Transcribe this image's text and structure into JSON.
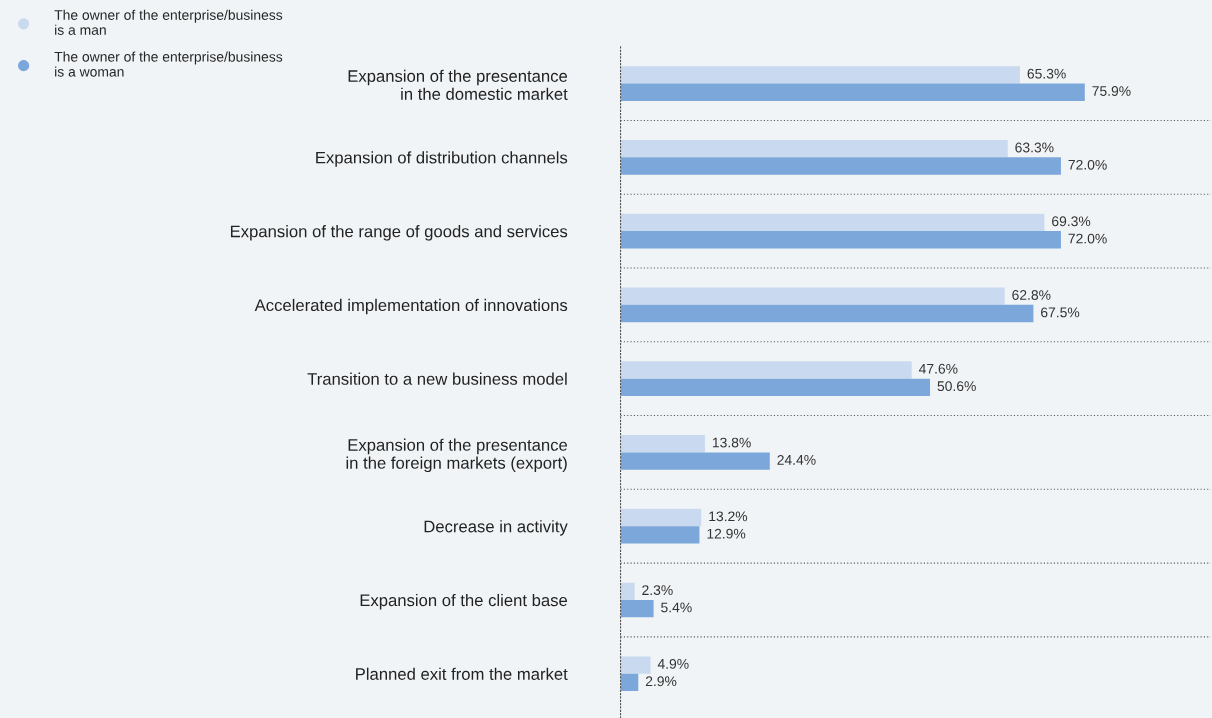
{
  "chart_data": {
    "type": "bar",
    "orientation": "horizontal",
    "xlim": [
      0,
      96.5
    ],
    "grid": "y",
    "legend": "top left",
    "categories": [
      "Expansion of the presentance\nin the domestic market",
      "Expansion of distribution channels",
      "Expansion of the range of goods and services",
      "Accelerated implementation of innovations",
      "Transition to a new business model",
      "Expansion of the presentance\nin the foreign markets (export)",
      "Decrease in activity",
      "Expansion of the client base",
      "Planned exit from the market"
    ],
    "series": [
      {
        "name": "The owner of the enterprise/business\nis a man",
        "color": "#c9daf0",
        "values": [
          65.3,
          63.3,
          69.3,
          62.8,
          47.6,
          13.8,
          13.2,
          2.3,
          4.9
        ],
        "value_labels": [
          "65.3%",
          "63.3%",
          "69.3%",
          "62.8%",
          "47.6%",
          "13.8%",
          "13.2%",
          "2.3%",
          "4.9%"
        ]
      },
      {
        "name": "The owner of the enterprise/business\nis a woman",
        "color": "#7ba7da",
        "values": [
          75.9,
          72.0,
          72.0,
          67.5,
          50.6,
          24.4,
          12.9,
          5.4,
          2.9
        ],
        "value_labels": [
          "75.9%",
          "72.0%",
          "72.0%",
          "67.5%",
          "50.6%",
          "24.4%",
          "12.9%",
          "5.4%",
          "2.9%"
        ]
      }
    ]
  }
}
